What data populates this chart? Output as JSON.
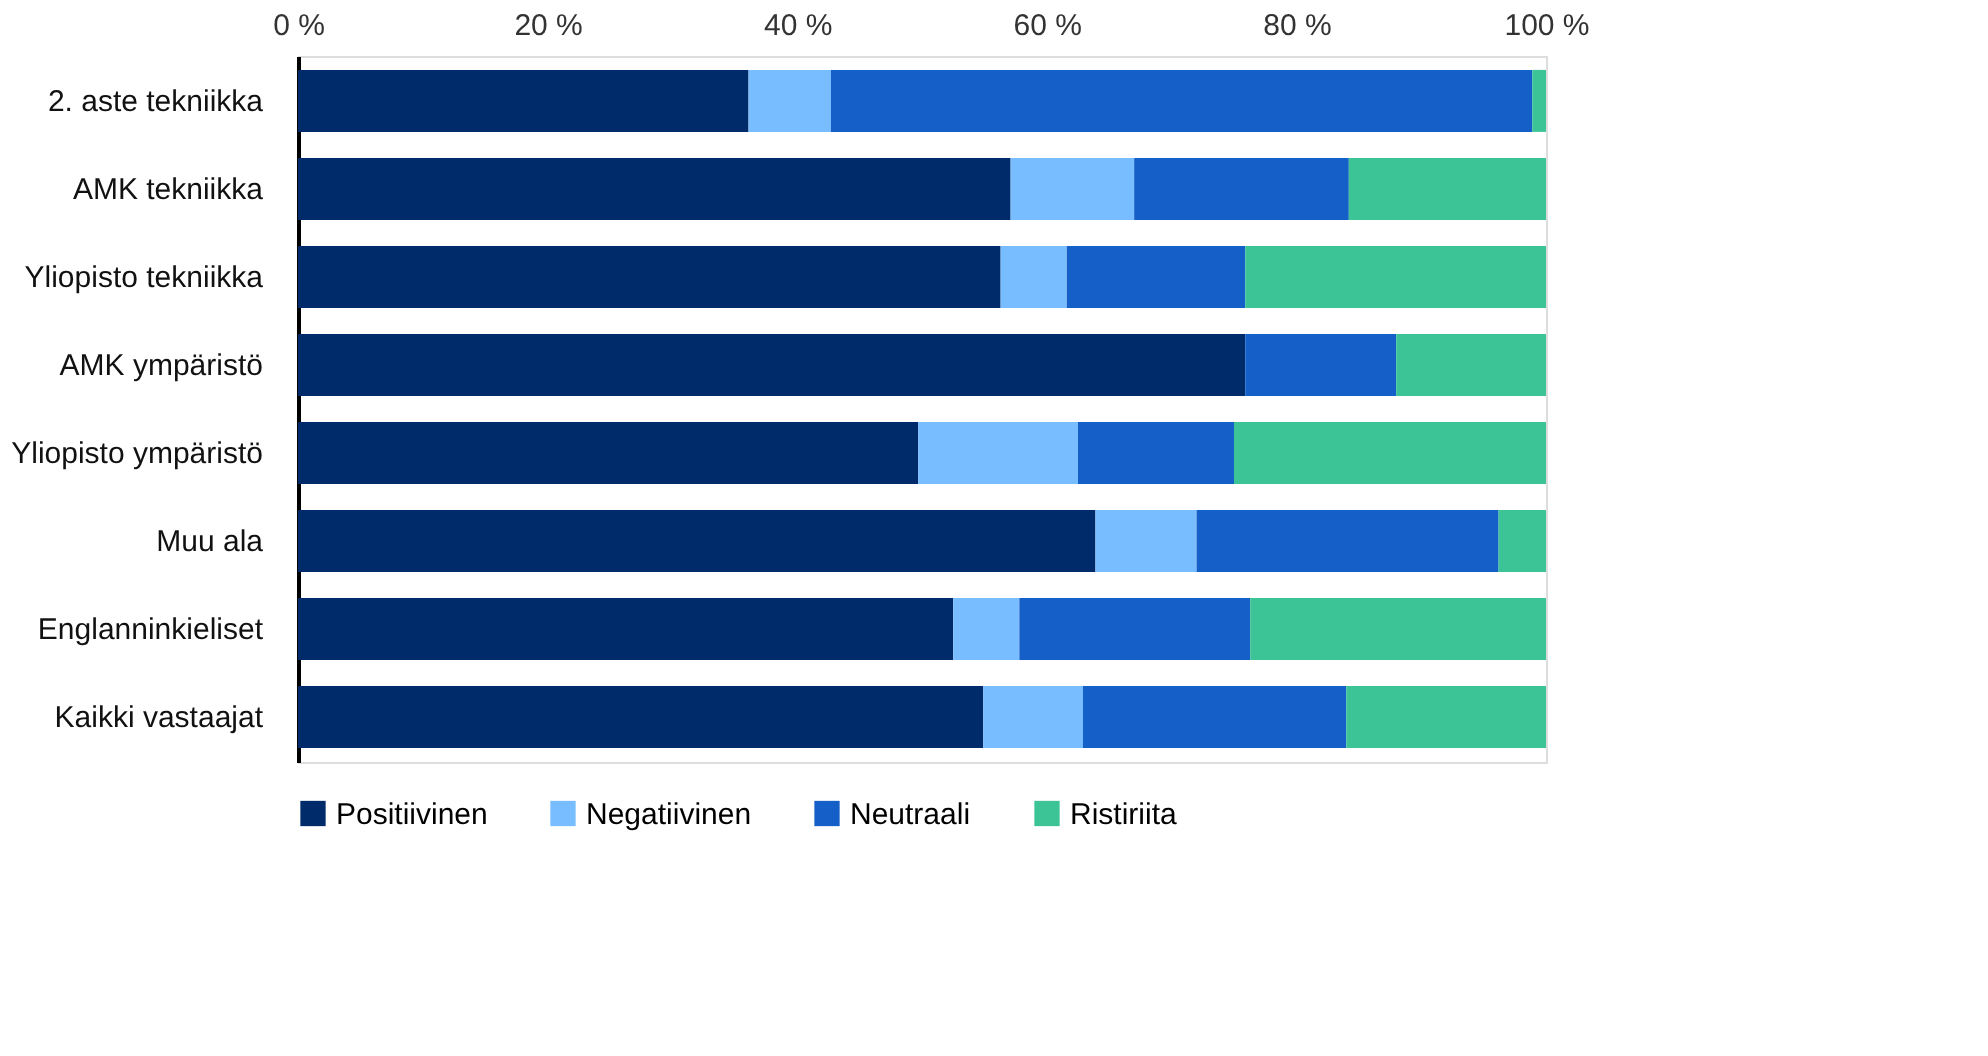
{
  "chart_data": {
    "type": "bar",
    "orientation": "horizontal",
    "stacked": true,
    "categories": [
      "2. aste tekniikka",
      "AMK tekniikka",
      "Yliopisto tekniikka",
      "AMK ympäristö",
      "Yliopisto ympäristö",
      "Muu ala",
      "Englanninkieliset",
      "Kaikki vastaajat"
    ],
    "series": [
      {
        "name": "Positiivinen",
        "color": "#002b6b",
        "values": [
          36.1,
          57.1,
          56.3,
          75.9,
          49.7,
          63.9,
          52.5,
          54.9
        ]
      },
      {
        "name": "Negatiivinen",
        "color": "#77bdff",
        "values": [
          6.6,
          9.9,
          5.3,
          0,
          12.8,
          8.1,
          5.3,
          8.0
        ]
      },
      {
        "name": "Neutraali",
        "color": "#1560c8",
        "values": [
          56.2,
          17.2,
          14.3,
          12.1,
          12.5,
          24.2,
          18.5,
          21.1
        ]
      },
      {
        "name": "Ristiriita",
        "color": "#3cc496",
        "values": [
          1.1,
          15.8,
          24.1,
          12.0,
          25.0,
          3.8,
          23.7,
          16.0
        ]
      }
    ],
    "xlim": [
      0,
      100
    ],
    "xticks": [
      {
        "value": 0,
        "label": "0 %"
      },
      {
        "value": 20,
        "label": "20 %"
      },
      {
        "value": 40,
        "label": "40 %"
      },
      {
        "value": 60,
        "label": "60 %"
      },
      {
        "value": 80,
        "label": "80 %"
      },
      {
        "value": 100,
        "label": "100 %"
      }
    ],
    "grid": false,
    "legend": "bottom"
  }
}
